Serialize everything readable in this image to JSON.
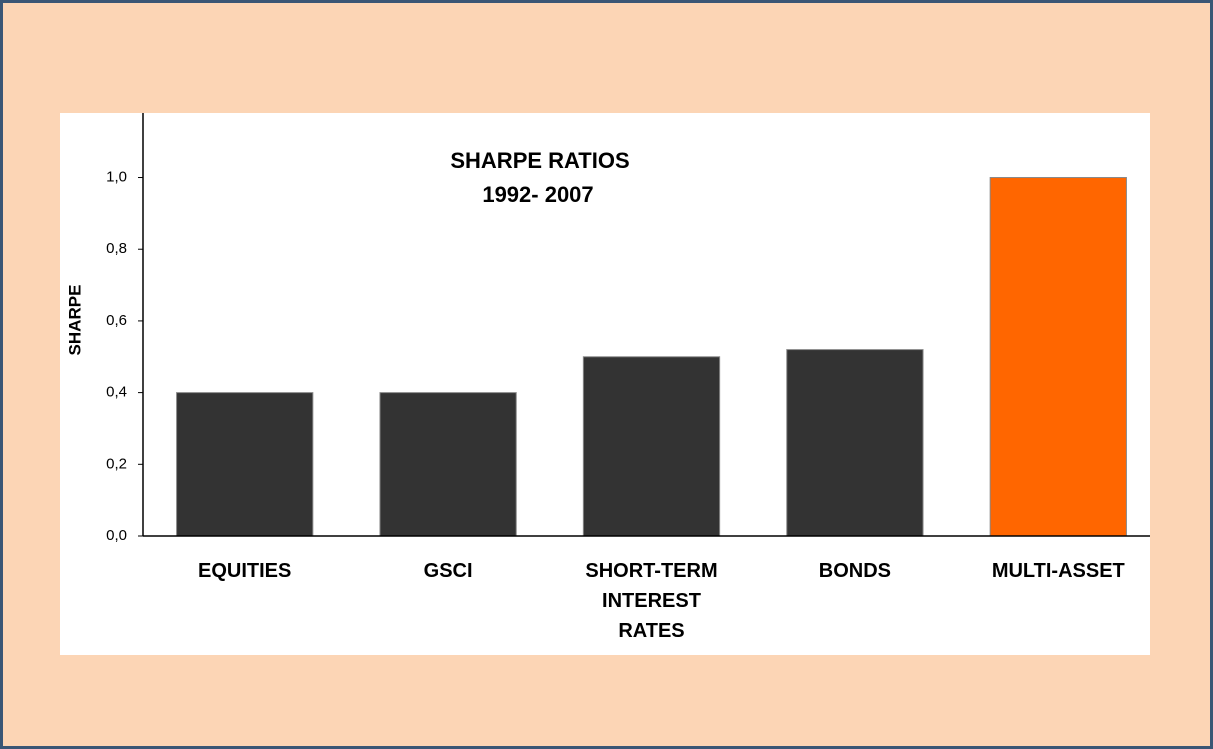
{
  "chart_data": {
    "type": "bar",
    "title": "SHARPE RATIOS",
    "subtitle": "1992- 2007",
    "y_label": "SHARPE",
    "categories": [
      "EQUITIES",
      "GSCI",
      "SHORT-TERM\nINTEREST\nRATES",
      "BONDS",
      "MULTI-ASSET"
    ],
    "values": [
      0.4,
      0.4,
      0.5,
      0.52,
      1.0
    ],
    "colors": [
      "#333333",
      "#333333",
      "#333333",
      "#333333",
      "#ff6600"
    ],
    "ylim": [
      0,
      1.18
    ],
    "yticks": [
      {
        "value": 0,
        "label": "0,0"
      },
      {
        "value": 0.2,
        "label": "0,2"
      },
      {
        "value": 0.4,
        "label": "0,4"
      },
      {
        "value": 0.6,
        "label": "0,6"
      },
      {
        "value": 0.8,
        "label": "0,8"
      },
      {
        "value": 1.0,
        "label": "1,0"
      }
    ],
    "grid": false
  }
}
